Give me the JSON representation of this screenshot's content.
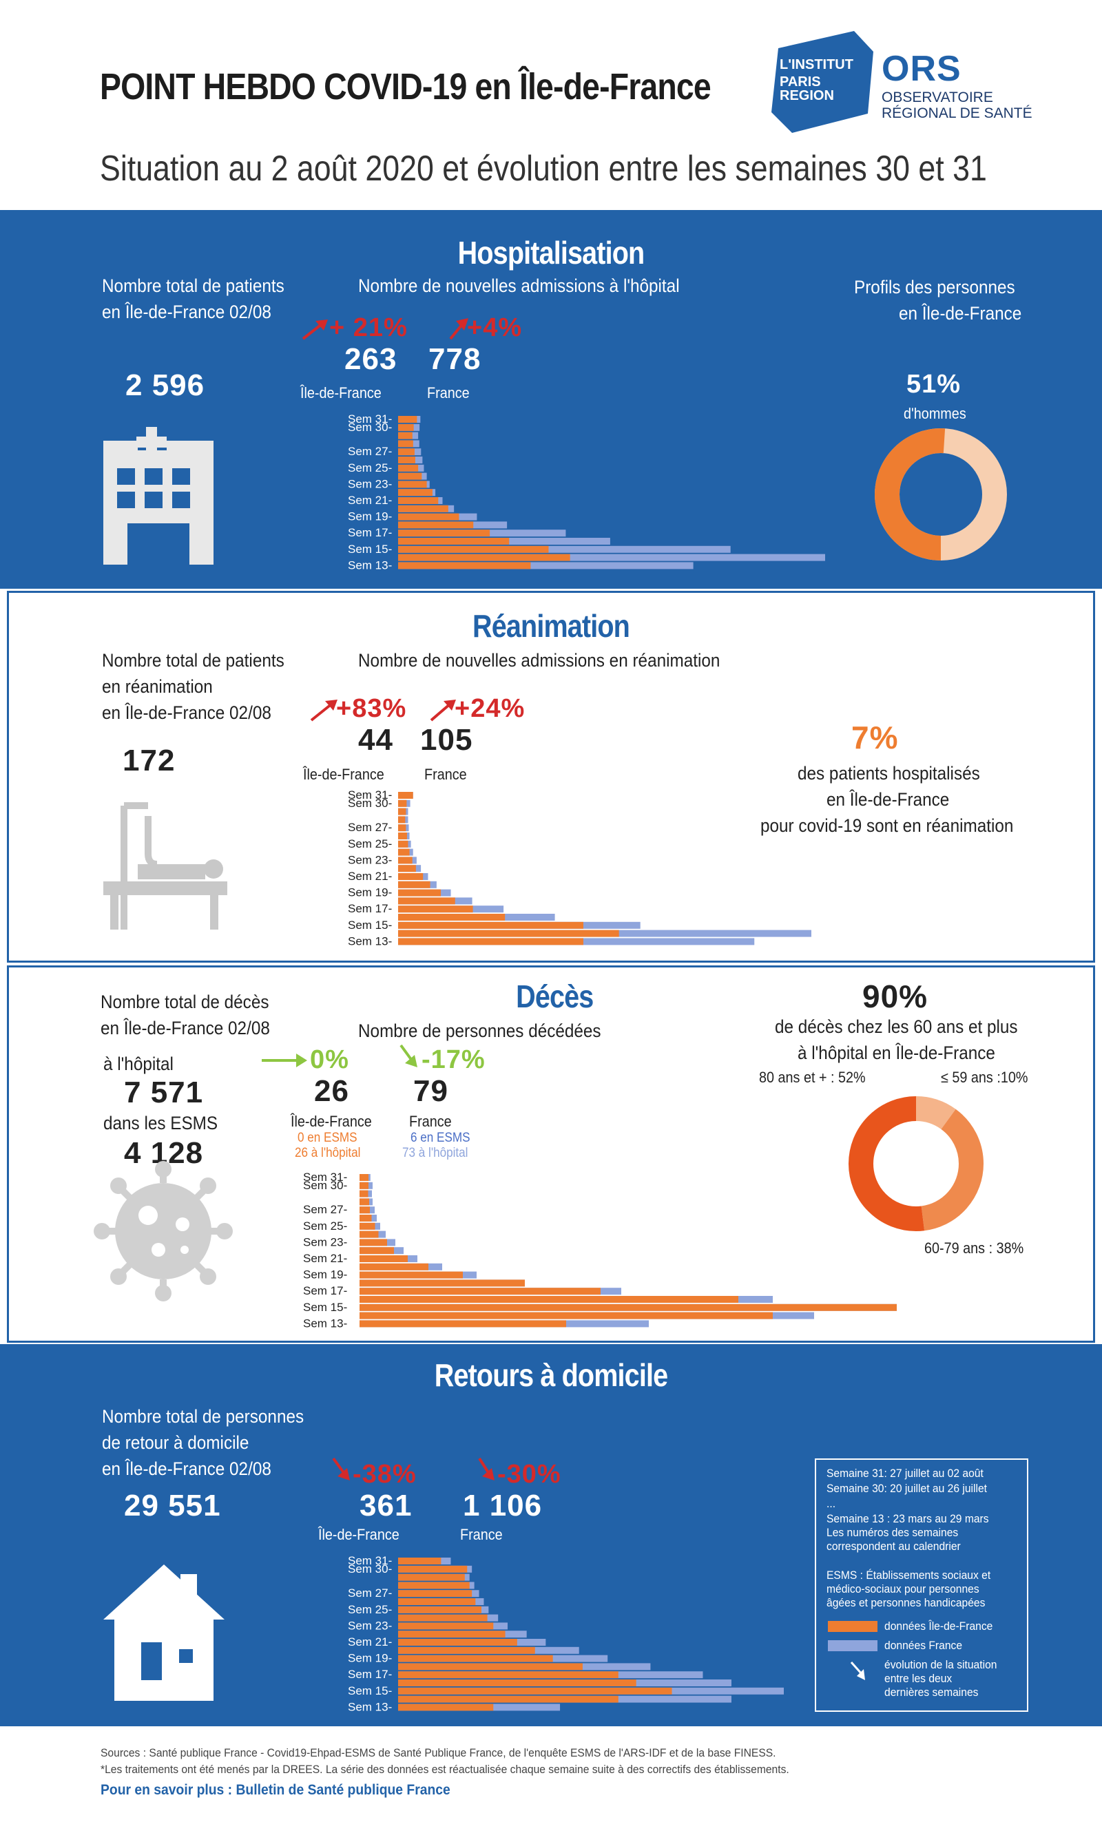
{
  "header": {
    "title": "POINT HEBDO COVID-19 en Île-de-France",
    "subtitle": "Situation au 2 août 2020 et évolution entre les semaines 30 et 31",
    "logo1": [
      "L'INSTITUT",
      "PARIS",
      "REGION"
    ],
    "logo2_big": "ORS",
    "logo2_small": [
      "OBSERVATOIRE",
      "RÉGIONAL DE SANTÉ"
    ]
  },
  "colors": {
    "blue": "#2262a8",
    "orange": "#ee7d30",
    "lightblue": "#8fa5dc",
    "red": "#d42a2a",
    "green": "#8dc641"
  },
  "weeks_labels": [
    "Sem 31-",
    "Sem 30-",
    "Sem 27-",
    "Sem 25-",
    "Sem 23-",
    "Sem 21-",
    "Sem 19-",
    "Sem 17-",
    "Sem 15-",
    "Sem 13-"
  ],
  "hosp": {
    "title": "Hospitalisation",
    "total_label": [
      "Nombre total de patients",
      "en Île-de-France 02/08"
    ],
    "total": "2 596",
    "new_label": "Nombre de nouvelles admissions à l'hôpital",
    "idf_pct": "+ 21%",
    "fr_pct": "+4%",
    "idf_val": "263",
    "fr_val": "778",
    "idf_lbl": "Île-de-France",
    "fr_lbl": "France",
    "profile_label": [
      "Profils des personnes",
      "en Île-de-France"
    ],
    "men_pct": "51%",
    "men_lbl": "d'hommes",
    "men_value": 51
  },
  "rea": {
    "title": "Réanimation",
    "total_label": [
      "Nombre total de patients",
      "en réanimation",
      "en Île-de-France 02/08"
    ],
    "total": "172",
    "new_label": "Nombre de nouvelles admissions en réanimation",
    "idf_pct": "+83%",
    "fr_pct": "+24%",
    "idf_val": "44",
    "fr_val": "105",
    "idf_lbl": "Île-de-France",
    "fr_lbl": "France",
    "share_pct": "7%",
    "share_lbl": [
      "des patients hospitalisés",
      "en Île-de-France",
      "pour covid-19 sont en réanimation"
    ]
  },
  "deces": {
    "title": "Décès",
    "total_label": [
      "Nombre total de décès",
      "en Île-de-France 02/08"
    ],
    "hosp_lbl": "à l'hôpital",
    "hosp_val": "7 571",
    "esms_lbl": "dans les ESMS",
    "esms_val": "4 128",
    "new_label": "Nombre de personnes décédées",
    "idf_pct": "0%",
    "fr_pct": "-17%",
    "idf_val": "26",
    "fr_val": "79",
    "idf_lbl": "Île-de-France",
    "fr_lbl": "France",
    "idf_esms": "0 en ESMS",
    "idf_hop": "26 à l'hôpital",
    "fr_esms": "6 en ESMS",
    "fr_hop": "73 à l'hôpital",
    "age_pct": "90%",
    "age_lbl": [
      "de décès chez les 60 ans et plus",
      "à l'hôpital en Île-de-France"
    ],
    "age_80": "80 ans et + : 52%",
    "age_59": "≤ 59 ans :10%",
    "age_6079": "60-79 ans : 38%",
    "age_values": [
      52,
      10,
      38
    ]
  },
  "retours": {
    "title": "Retours à domicile",
    "total_label": [
      "Nombre total de personnes",
      "de retour à domicile",
      "en Île-de-France 02/08"
    ],
    "total": "29 551",
    "idf_pct": "-38%",
    "fr_pct": "-30%",
    "idf_val": "361",
    "fr_val": "1 106",
    "idf_lbl": "Île-de-France",
    "fr_lbl": "France"
  },
  "legend": {
    "lines": [
      "Semaine 31: 27 juillet au 02 août",
      "Semaine 30: 20 juillet au 26 juillet",
      "...",
      "Semaine 13 : 23 mars au 29 mars",
      "Les numéros des semaines",
      "correspondent au calendrier"
    ],
    "esms": [
      "ESMS : Établissements sociaux et",
      "médico-sociaux pour personnes",
      "âgées et personnes handicapées"
    ],
    "idf": "données Île-de-France",
    "fr": "données France",
    "evol": [
      "évolution de la situation",
      "entre les deux",
      "dernières semaines"
    ]
  },
  "footer": {
    "l1": "Sources : Santé publique France - Covid19-Ehpad-ESMS de Santé Publique France, de l'enquête ESMS de l'ARS-IDF et de la base FINESS.",
    "l2": "*Les traitements ont été menés par la DREES. La série des données est réactualisée chaque semaine suite à des correctifs des établissements.",
    "l3": "Pour en savoir plus : Bulletin de Santé publique France"
  },
  "chart_data": [
    {
      "type": "bar",
      "name": "hosp",
      "categories": [
        "31",
        "30",
        "29",
        "28",
        "27",
        "26",
        "25",
        "24",
        "23",
        "22",
        "21",
        "20",
        "19",
        "18",
        "17",
        "16",
        "15",
        "14",
        "13"
      ],
      "series": [
        {
          "name": "données Île-de-France",
          "values": [
            263,
            218,
            200,
            210,
            230,
            240,
            280,
            330,
            400,
            480,
            560,
            700,
            850,
            1050,
            1280,
            1550,
            2100,
            2400,
            1850
          ]
        },
        {
          "name": "données France",
          "values": [
            778,
            748,
            700,
            740,
            800,
            850,
            900,
            1000,
            1100,
            1300,
            1550,
            1950,
            2750,
            3800,
            5850,
            7400,
            11600,
            14900,
            10300
          ]
        }
      ]
    },
    {
      "type": "bar",
      "name": "rea",
      "categories": [
        "31",
        "30",
        "29",
        "28",
        "27",
        "26",
        "25",
        "24",
        "23",
        "22",
        "21",
        "20",
        "19",
        "18",
        "17",
        "16",
        "15",
        "14",
        "13"
      ],
      "series": [
        {
          "name": "données Île-de-France",
          "values": [
            44,
            24,
            22,
            20,
            22,
            25,
            28,
            32,
            40,
            50,
            70,
            90,
            120,
            160,
            210,
            300,
            520,
            620,
            520
          ]
        },
        {
          "name": "données France",
          "values": [
            105,
            85,
            70,
            70,
            75,
            80,
            90,
            105,
            130,
            160,
            210,
            270,
            370,
            520,
            740,
            1100,
            1700,
            2900,
            2500
          ]
        }
      ]
    },
    {
      "type": "bar",
      "name": "deces",
      "categories": [
        "31",
        "30",
        "29",
        "28",
        "27",
        "26",
        "25",
        "24",
        "23",
        "22",
        "21",
        "20",
        "19",
        "18",
        "17",
        "16",
        "15",
        "14",
        "13"
      ],
      "series": [
        {
          "name": "données Île-de-France",
          "values": [
            26,
            26,
            25,
            28,
            30,
            35,
            45,
            55,
            80,
            100,
            140,
            200,
            300,
            480,
            700,
            1100,
            1850,
            1200,
            600
          ]
        },
        {
          "name": "données France",
          "values": [
            79,
            95,
            90,
            95,
            110,
            125,
            150,
            190,
            260,
            320,
            420,
            600,
            850,
            1200,
            1900,
            3000,
            3900,
            3300,
            2100
          ]
        }
      ]
    },
    {
      "type": "bar",
      "name": "retours",
      "categories": [
        "31",
        "30",
        "29",
        "28",
        "27",
        "26",
        "25",
        "24",
        "23",
        "22",
        "21",
        "20",
        "19",
        "18",
        "17",
        "16",
        "15",
        "14",
        "13"
      ],
      "series": [
        {
          "name": "données Île-de-France",
          "values": [
            361,
            580,
            560,
            600,
            620,
            650,
            700,
            750,
            800,
            900,
            1000,
            1150,
            1300,
            1550,
            1850,
            2000,
            2300,
            1850,
            800
          ]
        },
        {
          "name": "données France",
          "values": [
            1106,
            1550,
            1500,
            1600,
            1700,
            1800,
            1900,
            2100,
            2300,
            2700,
            3100,
            3800,
            4400,
            5300,
            6400,
            7000,
            8100,
            7000,
            3400
          ]
        }
      ]
    }
  ]
}
